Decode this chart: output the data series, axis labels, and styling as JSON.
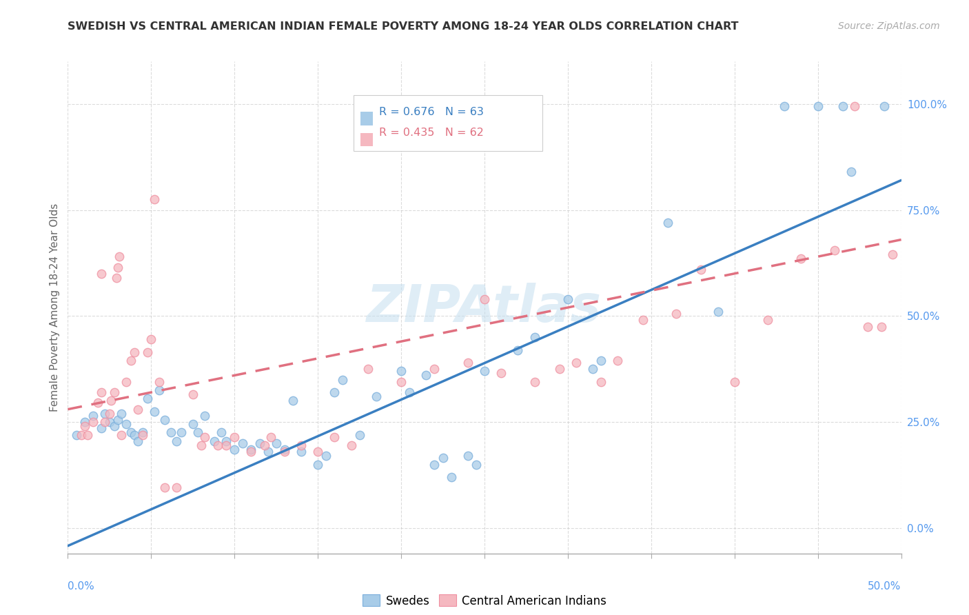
{
  "title": "SWEDISH VS CENTRAL AMERICAN INDIAN FEMALE POVERTY AMONG 18-24 YEAR OLDS CORRELATION CHART",
  "source": "Source: ZipAtlas.com",
  "ylabel": "Female Poverty Among 18-24 Year Olds",
  "xlim": [
    0.0,
    0.5
  ],
  "ylim": [
    -0.06,
    1.1
  ],
  "yticks": [
    0.0,
    0.25,
    0.5,
    0.75,
    1.0
  ],
  "ytick_labels": [
    "0.0%",
    "25.0%",
    "50.0%",
    "75.0%",
    "100.0%"
  ],
  "blue_legend_text": "R = 0.676   N = 63",
  "pink_legend_text": "R = 0.435   N = 62",
  "legend_swedes": "Swedes",
  "legend_ca": "Central American Indians",
  "watermark": "ZIPAtlas",
  "blue_dot_color": "#a8cce8",
  "pink_dot_color": "#f5b8c0",
  "blue_dot_edge": "#7aaedb",
  "pink_dot_edge": "#ef8fa0",
  "blue_line_color": "#3a7fc1",
  "pink_line_color": "#e07080",
  "blue_scatter": [
    [
      0.005,
      0.22
    ],
    [
      0.01,
      0.25
    ],
    [
      0.015,
      0.265
    ],
    [
      0.02,
      0.235
    ],
    [
      0.022,
      0.27
    ],
    [
      0.025,
      0.25
    ],
    [
      0.028,
      0.24
    ],
    [
      0.03,
      0.255
    ],
    [
      0.032,
      0.27
    ],
    [
      0.035,
      0.245
    ],
    [
      0.038,
      0.225
    ],
    [
      0.04,
      0.22
    ],
    [
      0.042,
      0.205
    ],
    [
      0.045,
      0.225
    ],
    [
      0.048,
      0.305
    ],
    [
      0.052,
      0.275
    ],
    [
      0.055,
      0.325
    ],
    [
      0.058,
      0.255
    ],
    [
      0.062,
      0.225
    ],
    [
      0.065,
      0.205
    ],
    [
      0.068,
      0.225
    ],
    [
      0.075,
      0.245
    ],
    [
      0.078,
      0.225
    ],
    [
      0.082,
      0.265
    ],
    [
      0.088,
      0.205
    ],
    [
      0.092,
      0.225
    ],
    [
      0.095,
      0.205
    ],
    [
      0.1,
      0.185
    ],
    [
      0.105,
      0.2
    ],
    [
      0.11,
      0.185
    ],
    [
      0.115,
      0.2
    ],
    [
      0.12,
      0.18
    ],
    [
      0.125,
      0.2
    ],
    [
      0.13,
      0.185
    ],
    [
      0.135,
      0.3
    ],
    [
      0.14,
      0.18
    ],
    [
      0.15,
      0.15
    ],
    [
      0.155,
      0.17
    ],
    [
      0.16,
      0.32
    ],
    [
      0.165,
      0.35
    ],
    [
      0.175,
      0.22
    ],
    [
      0.185,
      0.31
    ],
    [
      0.2,
      0.37
    ],
    [
      0.205,
      0.32
    ],
    [
      0.215,
      0.36
    ],
    [
      0.22,
      0.15
    ],
    [
      0.225,
      0.165
    ],
    [
      0.23,
      0.12
    ],
    [
      0.24,
      0.17
    ],
    [
      0.245,
      0.15
    ],
    [
      0.25,
      0.37
    ],
    [
      0.27,
      0.42
    ],
    [
      0.28,
      0.45
    ],
    [
      0.3,
      0.54
    ],
    [
      0.315,
      0.375
    ],
    [
      0.32,
      0.395
    ],
    [
      0.36,
      0.72
    ],
    [
      0.39,
      0.51
    ],
    [
      0.43,
      0.995
    ],
    [
      0.45,
      0.995
    ],
    [
      0.465,
      0.995
    ],
    [
      0.47,
      0.84
    ],
    [
      0.49,
      0.995
    ]
  ],
  "pink_scatter": [
    [
      0.008,
      0.22
    ],
    [
      0.01,
      0.24
    ],
    [
      0.012,
      0.22
    ],
    [
      0.015,
      0.25
    ],
    [
      0.018,
      0.295
    ],
    [
      0.02,
      0.32
    ],
    [
      0.02,
      0.6
    ],
    [
      0.022,
      0.25
    ],
    [
      0.025,
      0.27
    ],
    [
      0.026,
      0.3
    ],
    [
      0.028,
      0.32
    ],
    [
      0.029,
      0.59
    ],
    [
      0.03,
      0.615
    ],
    [
      0.031,
      0.64
    ],
    [
      0.032,
      0.22
    ],
    [
      0.035,
      0.345
    ],
    [
      0.038,
      0.395
    ],
    [
      0.04,
      0.415
    ],
    [
      0.042,
      0.28
    ],
    [
      0.045,
      0.22
    ],
    [
      0.048,
      0.415
    ],
    [
      0.05,
      0.445
    ],
    [
      0.052,
      0.775
    ],
    [
      0.055,
      0.345
    ],
    [
      0.058,
      0.095
    ],
    [
      0.065,
      0.095
    ],
    [
      0.075,
      0.315
    ],
    [
      0.08,
      0.195
    ],
    [
      0.082,
      0.215
    ],
    [
      0.09,
      0.195
    ],
    [
      0.095,
      0.195
    ],
    [
      0.1,
      0.215
    ],
    [
      0.11,
      0.18
    ],
    [
      0.118,
      0.195
    ],
    [
      0.122,
      0.215
    ],
    [
      0.13,
      0.18
    ],
    [
      0.14,
      0.195
    ],
    [
      0.15,
      0.18
    ],
    [
      0.16,
      0.215
    ],
    [
      0.17,
      0.195
    ],
    [
      0.18,
      0.375
    ],
    [
      0.2,
      0.345
    ],
    [
      0.22,
      0.375
    ],
    [
      0.24,
      0.39
    ],
    [
      0.25,
      0.54
    ],
    [
      0.26,
      0.365
    ],
    [
      0.28,
      0.345
    ],
    [
      0.295,
      0.375
    ],
    [
      0.305,
      0.39
    ],
    [
      0.32,
      0.345
    ],
    [
      0.33,
      0.395
    ],
    [
      0.345,
      0.49
    ],
    [
      0.365,
      0.505
    ],
    [
      0.38,
      0.61
    ],
    [
      0.4,
      0.345
    ],
    [
      0.42,
      0.49
    ],
    [
      0.44,
      0.635
    ],
    [
      0.46,
      0.655
    ],
    [
      0.472,
      0.995
    ],
    [
      0.48,
      0.475
    ],
    [
      0.488,
      0.475
    ],
    [
      0.495,
      0.645
    ]
  ],
  "blue_line_pts": [
    [
      0.0,
      -0.042
    ],
    [
      0.5,
      0.82
    ]
  ],
  "pink_line_pts": [
    [
      0.0,
      0.28
    ],
    [
      0.5,
      0.68
    ]
  ],
  "background_color": "#ffffff",
  "grid_color": "#cccccc",
  "title_fontsize": 11.5,
  "source_fontsize": 10,
  "tick_fontsize": 11,
  "ylabel_fontsize": 11
}
